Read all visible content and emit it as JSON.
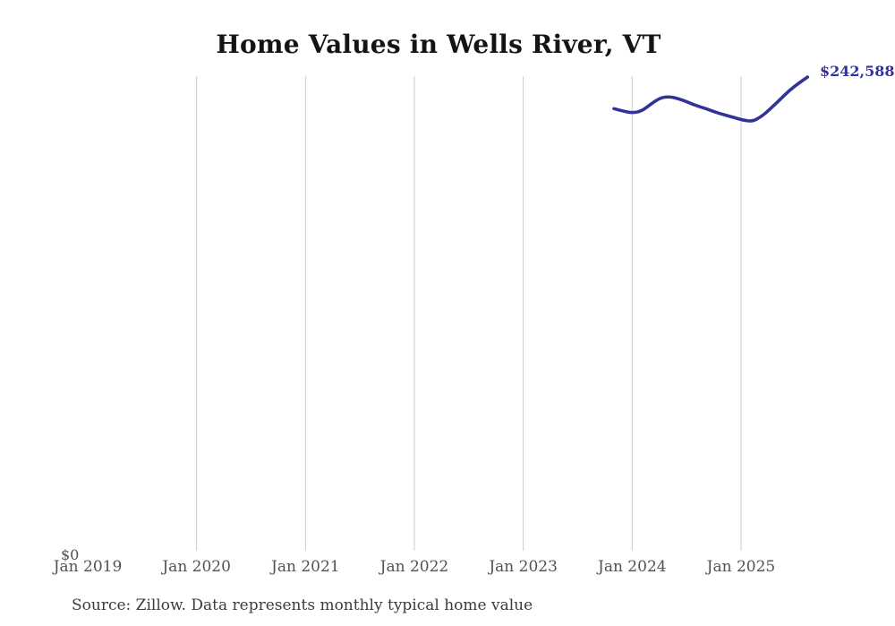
{
  "header": {
    "title": "Home Values in Wells River, VT"
  },
  "chart_data": {
    "type": "line",
    "title": "Home Values in Wells River, VT",
    "x": [
      "Nov 2023",
      "Dec 2023",
      "Jan 2024",
      "Feb 2024",
      "Mar 2024",
      "Apr 2024",
      "May 2024",
      "Jun 2024",
      "Jul 2024",
      "Aug 2024",
      "Sep 2024",
      "Oct 2024",
      "Nov 2024",
      "Dec 2024",
      "Jan 2025",
      "Feb 2025",
      "Mar 2025",
      "Apr 2025",
      "May 2025",
      "Jun 2025",
      "Jul 2025",
      "Aug 2025"
    ],
    "values": [
      226400,
      225100,
      224200,
      225100,
      228700,
      231900,
      232600,
      231500,
      229700,
      227800,
      226400,
      224600,
      223200,
      221900,
      220500,
      219800,
      222300,
      226500,
      231000,
      235600,
      239300,
      242588
    ],
    "x_axis_ticks": [
      "Jan 2019",
      "Jan 2020",
      "Jan 2021",
      "Jan 2022",
      "Jan 2023",
      "Jan 2024",
      "Jan 2025"
    ],
    "y_axis_zero_label": "$0",
    "end_value_label": "$242,588",
    "ylim": [
      0,
      242588
    ],
    "grid": "vertical-gridlines-only",
    "legend": "none",
    "line_color": "#32329b",
    "gridline_color": "#cccccc"
  },
  "footer": {
    "source": "Source: Zillow. Data represents monthly typical home value"
  }
}
